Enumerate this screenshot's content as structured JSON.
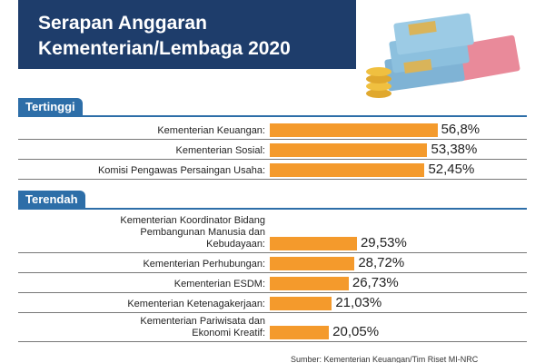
{
  "header": {
    "title": "Serapan Anggaran\nKementerian/Lembaga 2020"
  },
  "chart_data": [
    {
      "type": "bar",
      "title": "Tertinggi",
      "color": "#f49a2c",
      "categories": [
        "Kementerian Keuangan:",
        "Kementerian Sosial:",
        "Komisi Pengawas Persaingan Usaha:"
      ],
      "values": [
        56.8,
        53.38,
        52.45
      ],
      "value_labels": [
        "56,8%",
        "53,38%",
        "52,45%"
      ]
    },
    {
      "type": "bar",
      "title": "Terendah",
      "color": "#f49a2c",
      "categories": [
        "Kementerian Koordinator Bidang\nPembangunan Manusia dan\nKebudayaan:",
        "Kementerian Perhubungan:",
        "Kementerian ESDM:",
        "Kementerian Ketenagakerjaan:",
        "Kementerian Pariwisata dan\nEkonomi Kreatif:"
      ],
      "values": [
        29.53,
        28.72,
        26.73,
        21.03,
        20.05
      ],
      "value_labels": [
        "29,53%",
        "28,72%",
        "26,73%",
        "21,03%",
        "20,05%"
      ]
    }
  ],
  "source": "Sumber: Kementerian Keuangan/Tim Riset MI-NRC"
}
